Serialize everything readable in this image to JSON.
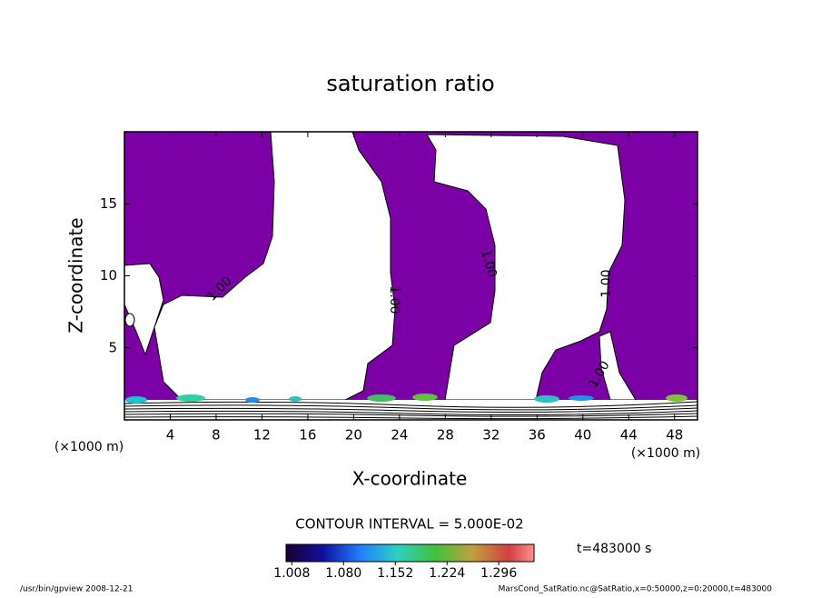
{
  "chart_data": {
    "type": "contour",
    "title": "saturation ratio",
    "x_label": "X-coordinate",
    "y_label": "Z-coordinate",
    "x_unit_label": "(×1000 m)",
    "y_unit_label": "(×1000 m)",
    "xlim": [
      0,
      50
    ],
    "ylim": [
      0,
      20
    ],
    "xticks": [
      4,
      8,
      12,
      16,
      20,
      24,
      28,
      32,
      36,
      40,
      44,
      48
    ],
    "yticks": [
      5,
      10,
      15
    ],
    "fill_color": "#7b00a6",
    "contour_labels": [
      "1.00",
      "1.00",
      "1.00",
      "1.00",
      "1.00"
    ],
    "contour_interval": "CONTOUR INTERVAL = 5.000E-02",
    "time_label": "t=483000 s",
    "colorbar": {
      "lim": [
        1.0,
        1.345
      ],
      "ticks": [
        1.008,
        {
          "value": 1.08,
          "label": "1.080"
        },
        1.152,
        1.224,
        1.296
      ]
    },
    "footer_left": "/usr/bin/gpview   2008-12-21",
    "footer_right": "MarsCond_SatRatio.nc@SatRatio,x=0:50000,z=0:20000,t=483000"
  }
}
